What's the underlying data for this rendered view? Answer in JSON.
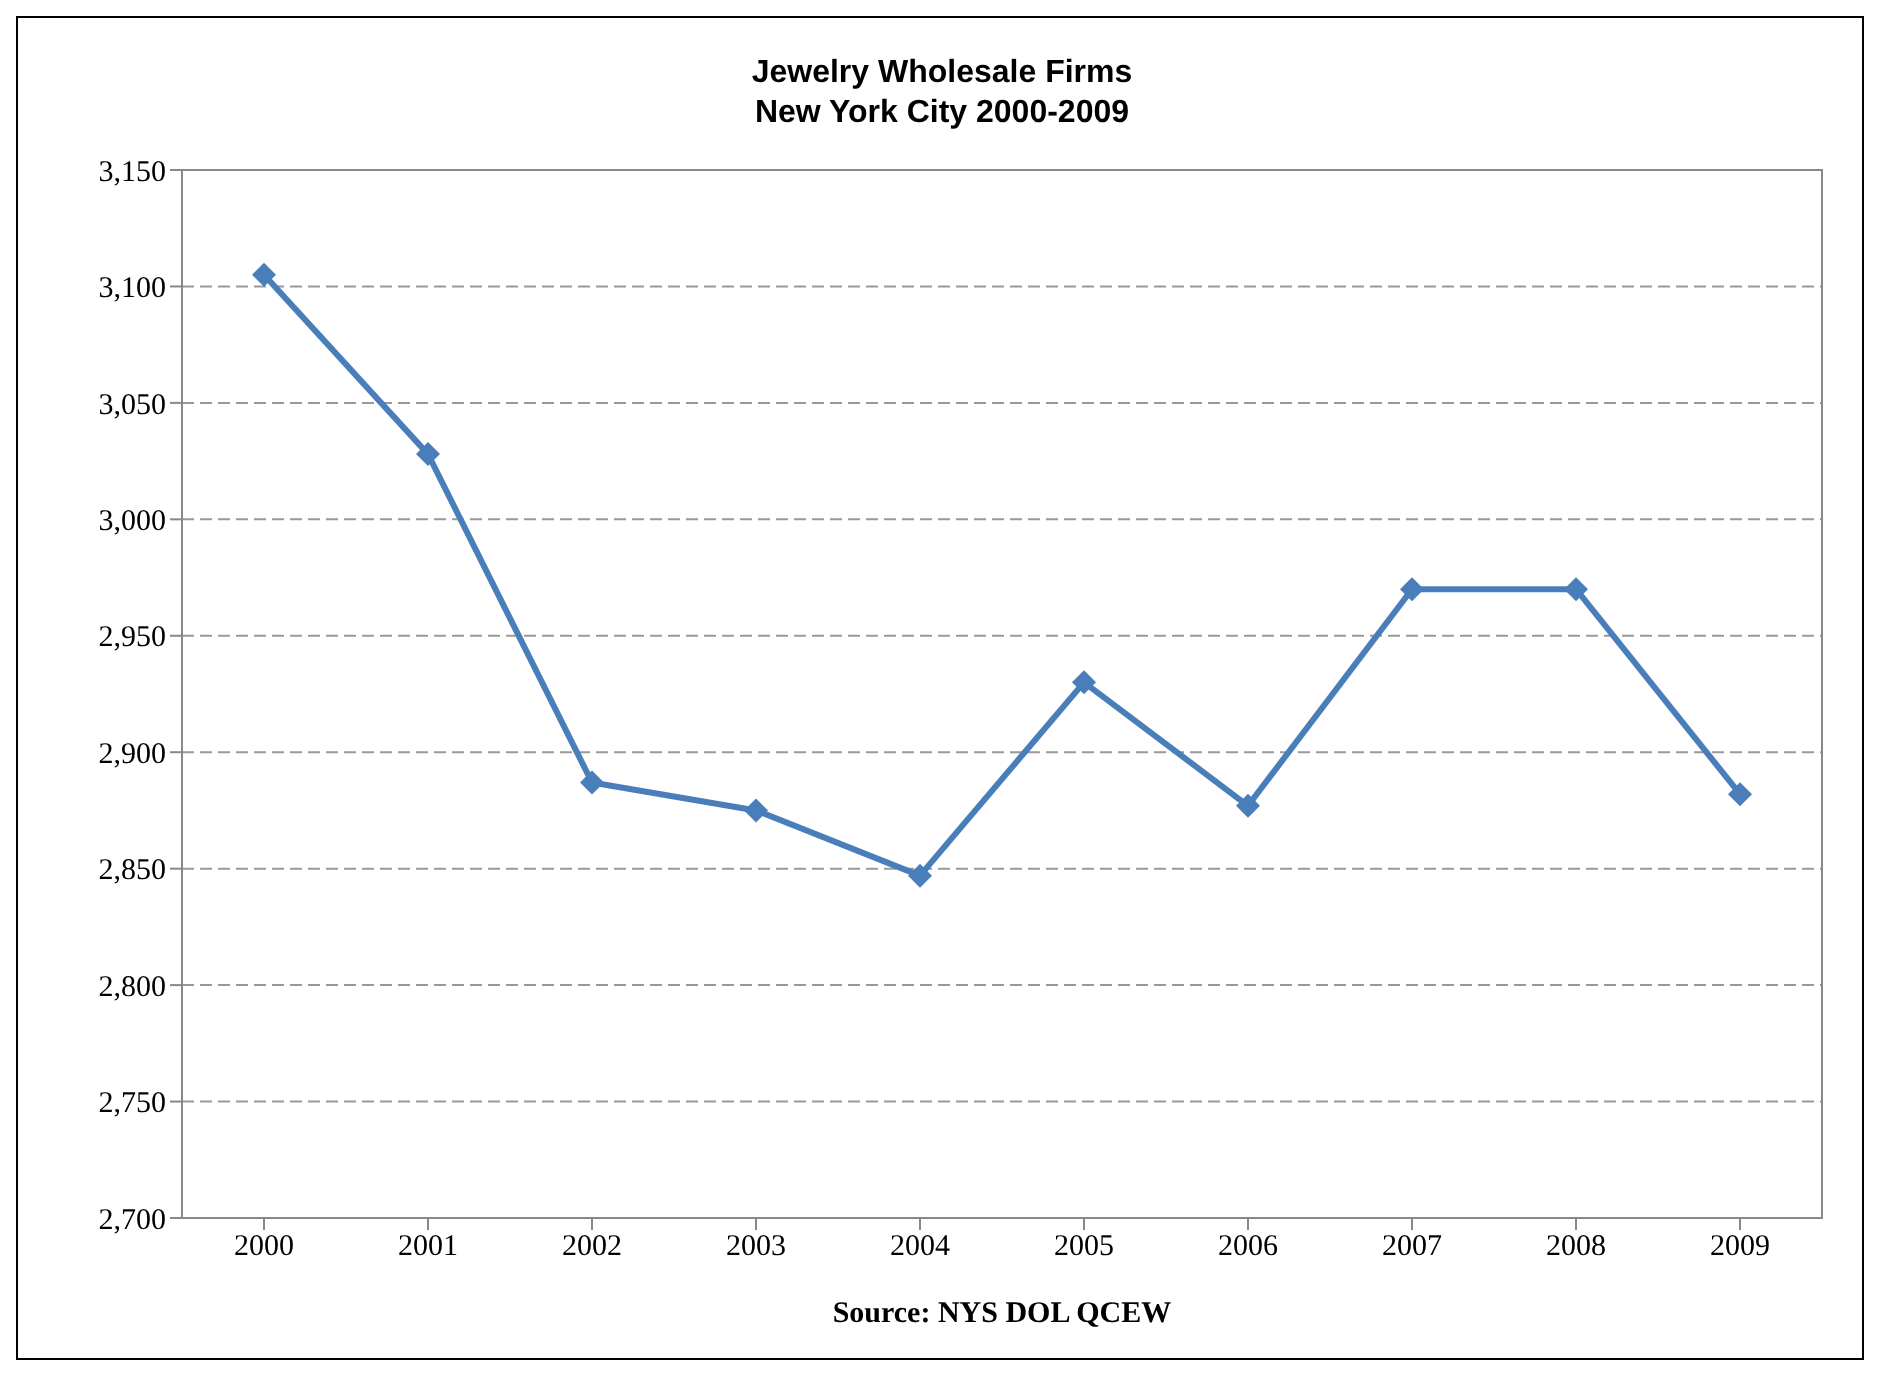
{
  "chart_data": {
    "type": "line",
    "title": "Jewelry Wholesale Firms\nNew York City 2000-2009",
    "categories": [
      "2000",
      "2001",
      "2002",
      "2003",
      "2004",
      "2005",
      "2006",
      "2007",
      "2008",
      "2009"
    ],
    "series": [
      {
        "color": "#4a7ebb",
        "values": [
          3105,
          3028,
          2887,
          2875,
          2847,
          2930,
          2877,
          2970,
          2970,
          2882
        ]
      }
    ],
    "ylim": [
      2700,
      3150
    ],
    "yticks": [
      {
        "value": 2700,
        "label": "2,700"
      },
      {
        "value": 2750,
        "label": "2,750"
      },
      {
        "value": 2800,
        "label": "2,800"
      },
      {
        "value": 2850,
        "label": "2,850"
      },
      {
        "value": 2900,
        "label": "2,900"
      },
      {
        "value": 2950,
        "label": "2,950"
      },
      {
        "value": 3000,
        "label": "3,000"
      },
      {
        "value": 3050,
        "label": "3,050"
      },
      {
        "value": 3100,
        "label": "3,100"
      },
      {
        "value": 3150,
        "label": "3,150"
      }
    ],
    "grid": "y",
    "marker": "diamond",
    "line_style": "solid",
    "legend": false,
    "annotations": [
      "Source: NYS DOL QCEW"
    ]
  }
}
